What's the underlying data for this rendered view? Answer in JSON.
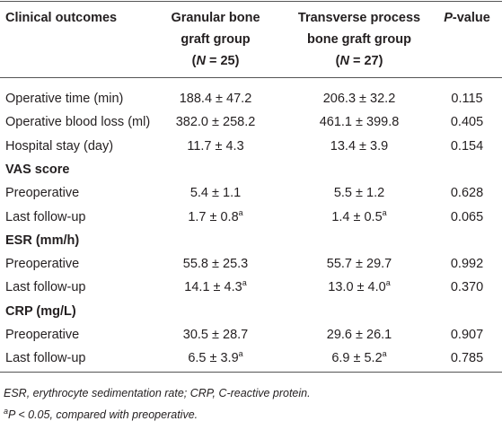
{
  "table": {
    "header": [
      {
        "lines": [
          [
            {
              "text": "Clinical outcomes"
            }
          ]
        ]
      },
      {
        "lines": [
          [
            {
              "text": "Granular bone"
            }
          ],
          [
            {
              "text": "graft group"
            }
          ],
          [
            {
              "text": "("
            },
            {
              "text": "N",
              "italic": true
            },
            {
              "text": " = 25)"
            }
          ]
        ]
      },
      {
        "lines": [
          [
            {
              "text": "Transverse process"
            }
          ],
          [
            {
              "text": "bone graft group"
            }
          ],
          [
            {
              "text": "("
            },
            {
              "text": "N",
              "italic": true
            },
            {
              "text": " = 27)"
            }
          ]
        ]
      },
      {
        "lines": [
          [
            {
              "text": "P",
              "italic": true
            },
            {
              "text": "-value"
            }
          ]
        ]
      }
    ],
    "rows": [
      {
        "label": "Operative time (min)",
        "values": [
          {
            "text": "188.4 ± 47.2"
          },
          {
            "text": "206.3 ± 32.2"
          },
          {
            "text": "0.115"
          }
        ]
      },
      {
        "label": "Operative blood loss (ml)",
        "values": [
          {
            "text": "382.0 ± 258.2"
          },
          {
            "text": "461.1 ± 399.8"
          },
          {
            "text": "0.405"
          }
        ]
      },
      {
        "label": "Hospital stay (day)",
        "values": [
          {
            "text": "11.7 ± 4.3"
          },
          {
            "text": "13.4 ± 3.9"
          },
          {
            "text": "0.154"
          }
        ]
      },
      {
        "section": "VAS score"
      },
      {
        "label": "Preoperative",
        "values": [
          {
            "text": "5.4 ± 1.1"
          },
          {
            "text": "5.5 ± 1.2"
          },
          {
            "text": "0.628"
          }
        ]
      },
      {
        "label": "Last follow-up",
        "values": [
          {
            "text": "1.7 ± 0.8",
            "sup": "a"
          },
          {
            "text": "1.4 ± 0.5",
            "sup": "a"
          },
          {
            "text": "0.065"
          }
        ]
      },
      {
        "section": "ESR (mm/h)"
      },
      {
        "label": "Preoperative",
        "values": [
          {
            "text": "55.8 ± 25.3"
          },
          {
            "text": "55.7 ± 29.7"
          },
          {
            "text": "0.992"
          }
        ]
      },
      {
        "label": "Last follow-up",
        "values": [
          {
            "text": "14.1 ± 4.3",
            "sup": "a"
          },
          {
            "text": "13.0 ± 4.0",
            "sup": "a"
          },
          {
            "text": "0.370"
          }
        ]
      },
      {
        "section": "CRP (mg/L)"
      },
      {
        "label": "Preoperative",
        "values": [
          {
            "text": "30.5 ± 28.7"
          },
          {
            "text": "29.6 ± 26.1"
          },
          {
            "text": "0.907"
          }
        ]
      },
      {
        "label": "Last follow-up",
        "values": [
          {
            "text": "6.5 ± 3.9",
            "sup": "a"
          },
          {
            "text": "6.9 ± 5.2",
            "sup": "a"
          },
          {
            "text": "0.785"
          }
        ]
      }
    ],
    "notes": [
      [
        {
          "text": "ESR, erythrocyte sedimentation rate; CRP, C-reactive protein.",
          "italic": true
        }
      ],
      [
        {
          "text": "a",
          "italic": true,
          "sup": true
        },
        {
          "text": "P < 0.05, compared with preoperative.",
          "italic": true
        }
      ]
    ]
  }
}
